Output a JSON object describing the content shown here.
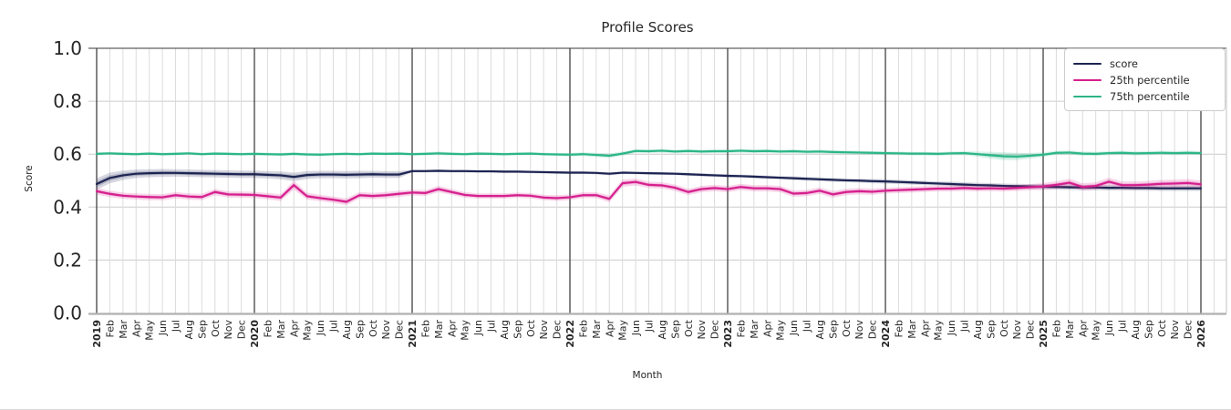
{
  "title": "Profile Scores",
  "axes": {
    "x_label": "Month",
    "y_label": "Score",
    "y_tick_labels": [
      "1.0",
      "0.8",
      "0.6",
      "0.4",
      "0.2",
      "0.0"
    ],
    "y_tick_values": [
      1.0,
      0.8,
      0.6,
      0.4,
      0.2,
      0.0
    ]
  },
  "legend": {
    "entries": [
      {
        "label": "score",
        "color": "#1c2452"
      },
      {
        "label": "25th percentile",
        "color": "#d6208e"
      },
      {
        "label": "75th percentile",
        "color": "#2bb687"
      }
    ]
  },
  "colors": {
    "month_grid": "#dcdcdc",
    "year_grid": "#333333",
    "h_grid": "#cccccc",
    "top_spine": "#3a3a3a",
    "bottom_spine": "#b0b0b0",
    "right_spine": "#cccccc",
    "tick_text": "#262626"
  },
  "chart_data": {
    "type": "line",
    "title": "Profile Scores",
    "xlabel": "Month",
    "ylabel": "Score",
    "ylim": [
      0.0,
      1.0
    ],
    "grid": "on",
    "legend_position": "upper right",
    "x_tick_labels": [
      "2019",
      "Feb",
      "Mar",
      "Apr",
      "May",
      "Jun",
      "Jul",
      "Aug",
      "Sep",
      "Oct",
      "Nov",
      "Dec",
      "2020",
      "Feb",
      "Mar",
      "Apr",
      "May",
      "Jun",
      "Jul",
      "Aug",
      "Sep",
      "Oct",
      "Nov",
      "Dec",
      "2021",
      "Feb",
      "Mar",
      "Apr",
      "May",
      "Jun",
      "Jul",
      "Aug",
      "Sep",
      "Oct",
      "Nov",
      "Dec",
      "2022",
      "Feb",
      "Mar",
      "Apr",
      "May",
      "Jun",
      "Jul",
      "Aug",
      "Sep",
      "Oct",
      "Nov",
      "Dec",
      "2023",
      "Feb",
      "Mar",
      "Apr",
      "May",
      "Jun",
      "Jul",
      "Aug",
      "Sep",
      "Oct",
      "Nov",
      "Dec",
      "2024",
      "Feb",
      "Mar",
      "Apr",
      "May",
      "Jun",
      "Jul",
      "Aug",
      "Sep",
      "Oct",
      "Nov",
      "Dec",
      "2025",
      "Feb",
      "Mar",
      "Apr",
      "May",
      "Jun",
      "Jul",
      "Aug",
      "Sep",
      "Oct",
      "Nov",
      "Dec",
      "2026"
    ],
    "series": [
      {
        "name": "score",
        "color": "#1c2452",
        "values": [
          0.487,
          0.51,
          0.52,
          0.526,
          0.528,
          0.529,
          0.529,
          0.528,
          0.527,
          0.526,
          0.525,
          0.524,
          0.524,
          0.522,
          0.52,
          0.514,
          0.521,
          0.523,
          0.523,
          0.522,
          0.523,
          0.524,
          0.523,
          0.523,
          0.536,
          0.536,
          0.537,
          0.536,
          0.536,
          0.535,
          0.535,
          0.534,
          0.534,
          0.533,
          0.532,
          0.531,
          0.53,
          0.53,
          0.529,
          0.526,
          0.53,
          0.529,
          0.528,
          0.527,
          0.526,
          0.524,
          0.522,
          0.52,
          0.518,
          0.517,
          0.515,
          0.513,
          0.511,
          0.509,
          0.507,
          0.505,
          0.503,
          0.501,
          0.5,
          0.498,
          0.497,
          0.495,
          0.493,
          0.491,
          0.489,
          0.487,
          0.485,
          0.483,
          0.482,
          0.48,
          0.479,
          0.478,
          0.477,
          0.476,
          0.475,
          0.474,
          0.474,
          0.473,
          0.473,
          0.472,
          0.472,
          0.471,
          0.471,
          0.471,
          0.471
        ],
        "band": [
          0.022,
          0.02,
          0.018,
          0.016,
          0.015,
          0.015,
          0.014,
          0.014,
          0.014,
          0.014,
          0.014,
          0.014,
          0.014,
          0.014,
          0.015,
          0.016,
          0.015,
          0.014,
          0.014,
          0.014,
          0.014,
          0.013,
          0.013,
          0.013,
          0.005,
          0.005,
          0.005,
          0.005,
          0.005,
          0.005,
          0.005,
          0.005,
          0.005,
          0.005,
          0.005,
          0.005,
          0.005,
          0.005,
          0.005,
          0.006,
          0.005,
          0.005,
          0.005,
          0.005,
          0.005,
          0.006,
          0.006,
          0.006,
          0.006,
          0.006,
          0.006,
          0.006,
          0.006,
          0.007,
          0.007,
          0.007,
          0.007,
          0.007,
          0.007,
          0.008,
          0.008,
          0.008,
          0.008,
          0.008,
          0.008,
          0.009,
          0.009,
          0.009,
          0.009,
          0.009,
          0.009,
          0.009,
          0.01,
          0.01,
          0.01,
          0.01,
          0.01,
          0.01,
          0.01,
          0.01,
          0.01,
          0.01,
          0.01,
          0.01,
          0.01
        ]
      },
      {
        "name": "25th percentile",
        "color": "#d6208e",
        "values": [
          0.46,
          0.45,
          0.443,
          0.44,
          0.438,
          0.437,
          0.445,
          0.44,
          0.438,
          0.457,
          0.448,
          0.447,
          0.446,
          0.441,
          0.436,
          0.483,
          0.441,
          0.434,
          0.428,
          0.42,
          0.445,
          0.442,
          0.445,
          0.45,
          0.455,
          0.453,
          0.468,
          0.457,
          0.446,
          0.442,
          0.442,
          0.442,
          0.445,
          0.443,
          0.436,
          0.434,
          0.437,
          0.445,
          0.445,
          0.431,
          0.49,
          0.495,
          0.484,
          0.482,
          0.473,
          0.457,
          0.468,
          0.472,
          0.468,
          0.476,
          0.471,
          0.471,
          0.468,
          0.451,
          0.453,
          0.462,
          0.448,
          0.457,
          0.46,
          0.458,
          0.462,
          0.464,
          0.466,
          0.468,
          0.47,
          0.47,
          0.472,
          0.47,
          0.471,
          0.47,
          0.472,
          0.475,
          0.478,
          0.484,
          0.492,
          0.476,
          0.48,
          0.496,
          0.483,
          0.483,
          0.485,
          0.488,
          0.489,
          0.491,
          0.486
        ],
        "band": [
          0.013,
          0.012,
          0.012,
          0.012,
          0.012,
          0.012,
          0.012,
          0.012,
          0.012,
          0.012,
          0.012,
          0.012,
          0.012,
          0.012,
          0.013,
          0.017,
          0.013,
          0.012,
          0.012,
          0.013,
          0.012,
          0.012,
          0.012,
          0.012,
          0.011,
          0.011,
          0.012,
          0.011,
          0.011,
          0.01,
          0.01,
          0.01,
          0.01,
          0.01,
          0.01,
          0.011,
          0.011,
          0.011,
          0.011,
          0.013,
          0.014,
          0.013,
          0.012,
          0.012,
          0.012,
          0.012,
          0.012,
          0.012,
          0.012,
          0.012,
          0.012,
          0.012,
          0.012,
          0.012,
          0.012,
          0.012,
          0.013,
          0.012,
          0.012,
          0.012,
          0.011,
          0.011,
          0.011,
          0.011,
          0.011,
          0.011,
          0.011,
          0.011,
          0.011,
          0.011,
          0.011,
          0.012,
          0.013,
          0.014,
          0.015,
          0.014,
          0.014,
          0.015,
          0.014,
          0.014,
          0.014,
          0.015,
          0.015,
          0.015,
          0.015
        ]
      },
      {
        "name": "75th percentile",
        "color": "#2bb687",
        "values": [
          0.601,
          0.603,
          0.601,
          0.6,
          0.602,
          0.6,
          0.601,
          0.603,
          0.6,
          0.602,
          0.601,
          0.6,
          0.601,
          0.6,
          0.599,
          0.601,
          0.599,
          0.598,
          0.6,
          0.601,
          0.6,
          0.602,
          0.601,
          0.602,
          0.6,
          0.601,
          0.603,
          0.601,
          0.6,
          0.602,
          0.601,
          0.6,
          0.601,
          0.602,
          0.6,
          0.599,
          0.598,
          0.6,
          0.597,
          0.594,
          0.602,
          0.612,
          0.611,
          0.613,
          0.61,
          0.612,
          0.61,
          0.611,
          0.611,
          0.613,
          0.611,
          0.612,
          0.61,
          0.611,
          0.609,
          0.61,
          0.608,
          0.607,
          0.606,
          0.605,
          0.604,
          0.603,
          0.602,
          0.602,
          0.601,
          0.603,
          0.604,
          0.6,
          0.596,
          0.592,
          0.591,
          0.594,
          0.598,
          0.605,
          0.606,
          0.602,
          0.601,
          0.604,
          0.605,
          0.603,
          0.604,
          0.605,
          0.604,
          0.605,
          0.604
        ],
        "band": [
          0.006,
          0.006,
          0.006,
          0.006,
          0.006,
          0.006,
          0.006,
          0.006,
          0.006,
          0.006,
          0.006,
          0.006,
          0.006,
          0.006,
          0.006,
          0.006,
          0.006,
          0.006,
          0.006,
          0.006,
          0.006,
          0.006,
          0.006,
          0.006,
          0.006,
          0.006,
          0.007,
          0.006,
          0.006,
          0.007,
          0.006,
          0.006,
          0.006,
          0.006,
          0.006,
          0.006,
          0.007,
          0.007,
          0.008,
          0.009,
          0.008,
          0.007,
          0.007,
          0.007,
          0.007,
          0.007,
          0.007,
          0.007,
          0.007,
          0.007,
          0.007,
          0.007,
          0.007,
          0.007,
          0.007,
          0.007,
          0.007,
          0.007,
          0.007,
          0.007,
          0.007,
          0.007,
          0.007,
          0.007,
          0.007,
          0.007,
          0.008,
          0.01,
          0.013,
          0.015,
          0.014,
          0.011,
          0.009,
          0.008,
          0.008,
          0.008,
          0.008,
          0.008,
          0.008,
          0.008,
          0.008,
          0.008,
          0.008,
          0.008,
          0.008
        ]
      }
    ]
  }
}
